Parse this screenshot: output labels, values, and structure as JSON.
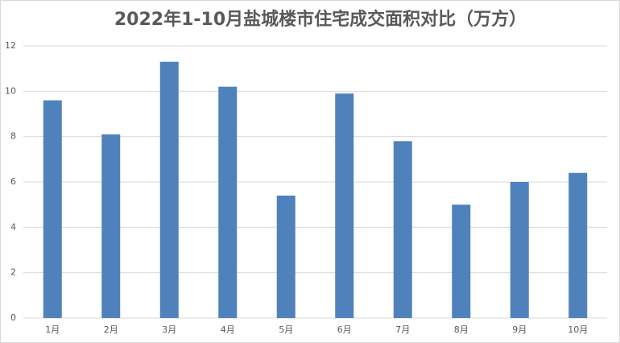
{
  "chart_data": {
    "type": "bar",
    "title": "2022年1-10月盐城楼市住宅成交面积对比（万方）",
    "categories": [
      "1月",
      "2月",
      "3月",
      "4月",
      "5月",
      "6月",
      "7月",
      "8月",
      "9月",
      "10月"
    ],
    "values": [
      9.6,
      8.1,
      11.3,
      10.2,
      5.4,
      9.9,
      7.8,
      5.0,
      6.0,
      6.4
    ],
    "color": "#4f81bd",
    "ylim": [
      0,
      12
    ],
    "yticks": [
      0,
      2,
      4,
      6,
      8,
      10,
      12
    ],
    "grid": true
  }
}
